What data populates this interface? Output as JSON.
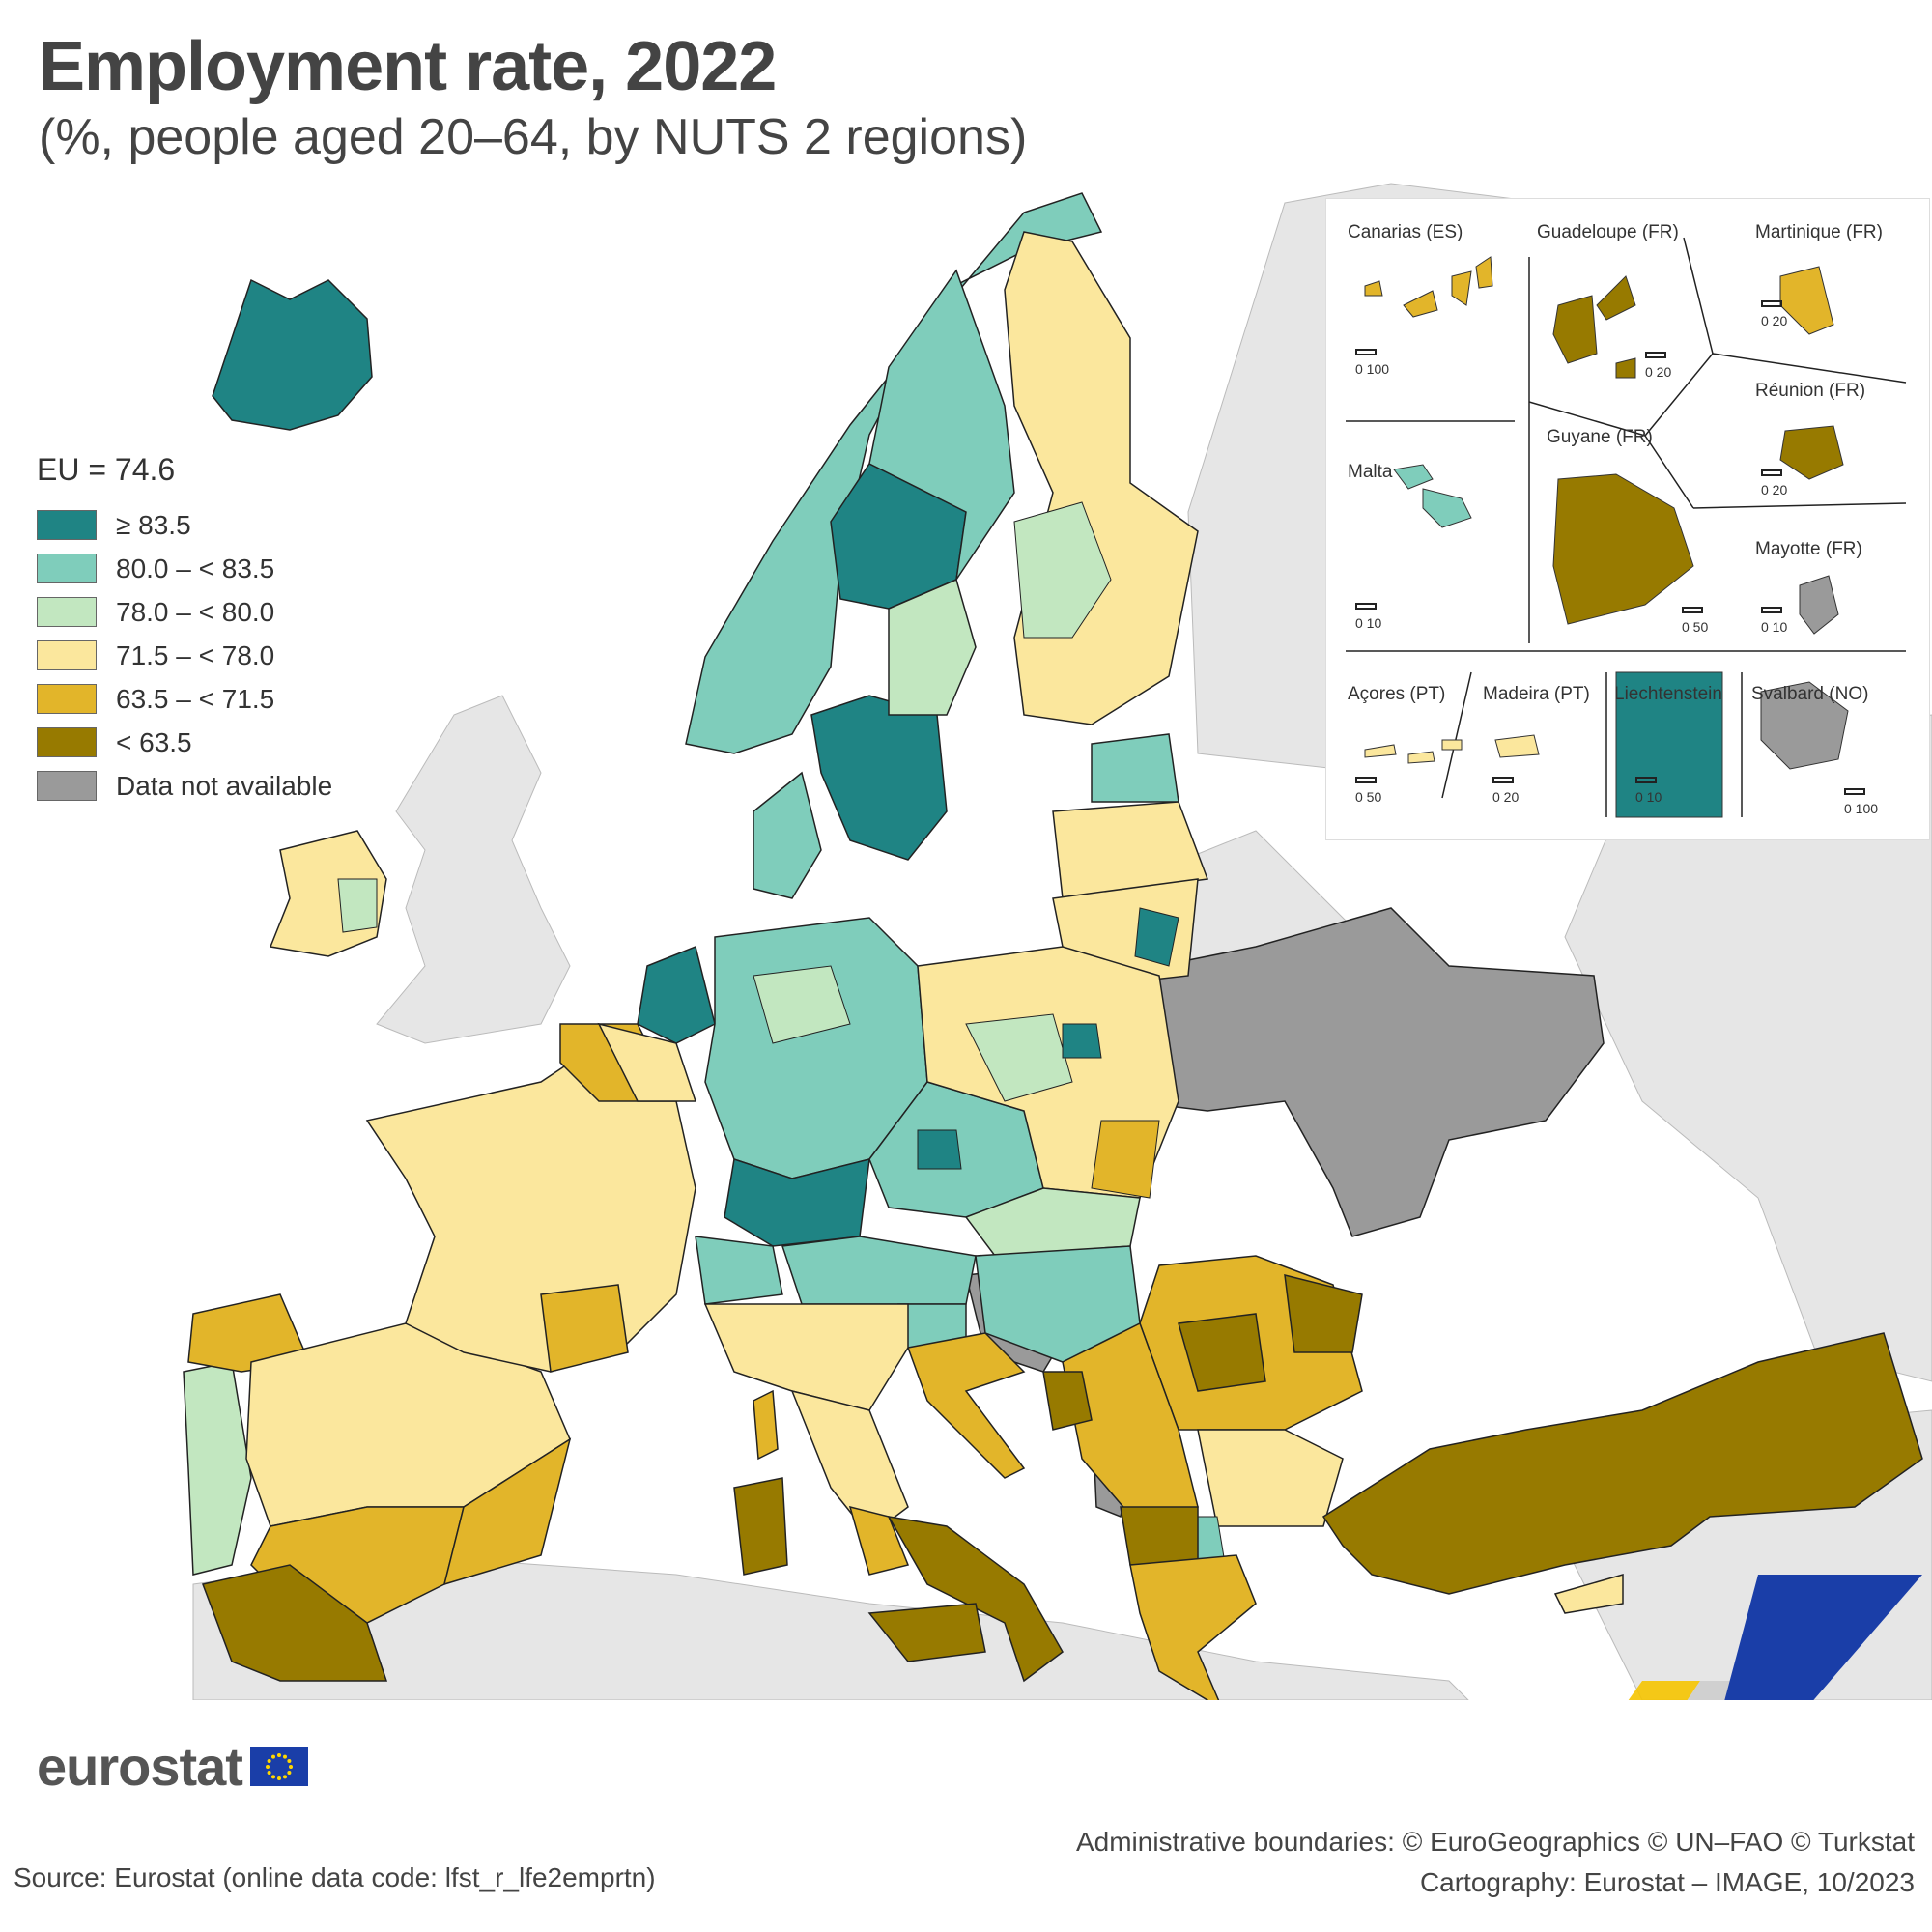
{
  "title": "Employment rate, 2022",
  "subtitle": "(%, people aged 20–64, by NUTS 2 regions)",
  "legend": {
    "title": "EU = 74.6",
    "items": [
      {
        "label": "≥ 83.5",
        "color": "#1f8484"
      },
      {
        "label": "80.0 – < 83.5",
        "color": "#7fcdbb"
      },
      {
        "label": "78.0 – < 80.0",
        "color": "#c2e7c0"
      },
      {
        "label": "71.5 – < 78.0",
        "color": "#fbe79d"
      },
      {
        "label": "63.5 – < 71.5",
        "color": "#e2b52a"
      },
      {
        "label": "< 63.5",
        "color": "#977a00"
      },
      {
        "label": "Data not available",
        "color": "#9a9a9a"
      }
    ]
  },
  "colors": {
    "non_eu_land": "#e6e6e6",
    "sea": "#ffffff",
    "border": "#222222"
  },
  "insets": [
    {
      "label": "Canarias (ES)",
      "scale": "0   100",
      "color": "#e2b52a"
    },
    {
      "label": "Guadeloupe (FR)",
      "scale": "0   20",
      "color": "#977a00"
    },
    {
      "label": "Martinique (FR)",
      "scale": "0   20",
      "color": "#e2b52a"
    },
    {
      "label": "Réunion (FR)",
      "scale": "0   20",
      "color": "#977a00"
    },
    {
      "label": "Guyane (FR)",
      "scale": "0   50",
      "color": "#977a00"
    },
    {
      "label": "Malta",
      "scale": "0   10",
      "color": "#7fcdbb"
    },
    {
      "label": "Mayotte (FR)",
      "scale": "0   10",
      "color": "#9a9a9a"
    },
    {
      "label": "Açores (PT)",
      "scale": "0   50",
      "color": "#fbe79d"
    },
    {
      "label": "Madeira (PT)",
      "scale": "0   20",
      "color": "#fbe79d"
    },
    {
      "label": "Liechtenstein",
      "scale": "0   10",
      "color": "#1f8484"
    },
    {
      "label": "Svalbard (NO)",
      "scale": "0  100",
      "color": "#9a9a9a"
    }
  ],
  "logo_text": "eurostat",
  "credits": {
    "boundaries": "Administrative boundaries: © EuroGeographics © UN–FAO © Turkstat",
    "cartography": "Cartography: Eurostat – IMAGE, 10/2023"
  },
  "source": "Source: Eurostat (online data code: lfst_r_lfe2emprtn)"
}
